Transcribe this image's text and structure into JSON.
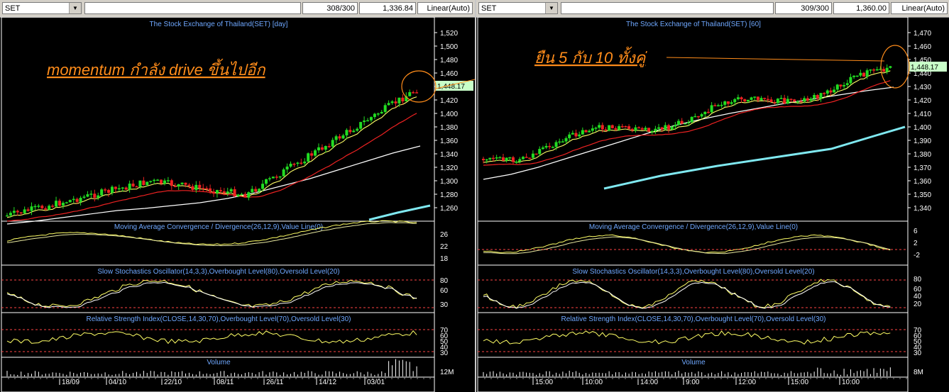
{
  "left": {
    "symbol": "SET",
    "bars": "308/300",
    "last": "1,336.84",
    "scale": "Linear(Auto)",
    "chart_title": "The Stock Exchange of Thailand(SET) [day]",
    "price_ticks": [
      "1,520",
      "1,500",
      "1,480",
      "1,460",
      "1,440",
      "1,420",
      "1,400",
      "1,380",
      "1,360",
      "1,340",
      "1,320",
      "1,300",
      "1,280",
      "1,260"
    ],
    "price_label": "1,448.17",
    "annotation": "momentum กำลัง drive ขึ้นไปอีก",
    "macd_title": "Moving Average Convergence / Divergence(26,12,9),Value Line(0)",
    "macd_ticks": [
      "26",
      "22",
      "18"
    ],
    "stoch_title": "Slow Stochastics Oscillator(14,3,3),Overbought Level(80),Oversold Level(20)",
    "stoch_ticks": [
      "80",
      "60",
      "30"
    ],
    "rsi_title": "Relative Strength Index(CLOSE,14,30,70),Overbought Level(70),Oversold Level(30)",
    "rsi_ticks": [
      "70",
      "60",
      "50",
      "40",
      "30"
    ],
    "volume_title": "Volume",
    "volume_tick": "12M",
    "x_labels": [
      "18/09",
      "04/10",
      "22/10",
      "08/11",
      "26/11",
      "14/12",
      "03/01"
    ]
  },
  "right": {
    "symbol": "SET",
    "bars": "309/300",
    "last": "1,360.00",
    "scale": "Linear(Auto)",
    "chart_title": "The Stock Exchange of Thailand(SET) [60]",
    "price_ticks": [
      "1,470",
      "1,460",
      "1,450",
      "1,440",
      "1,430",
      "1,420",
      "1,410",
      "1,400",
      "1,390",
      "1,380",
      "1,370",
      "1,360",
      "1,350",
      "1,340"
    ],
    "price_label": "1,448.17",
    "annotation": "ยืน 5 กับ 10 ทั้งคู่",
    "macd_title": "Moving Average Convergence / Divergence(26,12,9),Value Line(0)",
    "macd_ticks": [
      "6",
      "2",
      "-2"
    ],
    "stoch_title": "Slow Stochastics Oscillator(14,3,3),Overbought Level(80),Oversold Level(20)",
    "stoch_ticks": [
      "80",
      "60",
      "40",
      "20"
    ],
    "rsi_title": "Relative Strength Index(CLOSE,14,30,70),Overbought Level(70),Oversold Level(30)",
    "rsi_ticks": [
      "70",
      "60",
      "50",
      "40",
      "30"
    ],
    "volume_title": "Volume",
    "volume_tick": "8M",
    "x_labels": [
      "15:00",
      "10:00",
      "14:00",
      "9:00",
      "12:00",
      "15:00",
      "10:00"
    ]
  },
  "colors": {
    "bull": "#22dd22",
    "bear": "#ee2222",
    "ma_fast": "#ffff66",
    "ma_mid": "#ee2222",
    "ma_slow": "#ffffff",
    "ma_long": "#7fe8f0",
    "annotation": "#ff8c1a",
    "label_bg": "#c8ffc8"
  }
}
